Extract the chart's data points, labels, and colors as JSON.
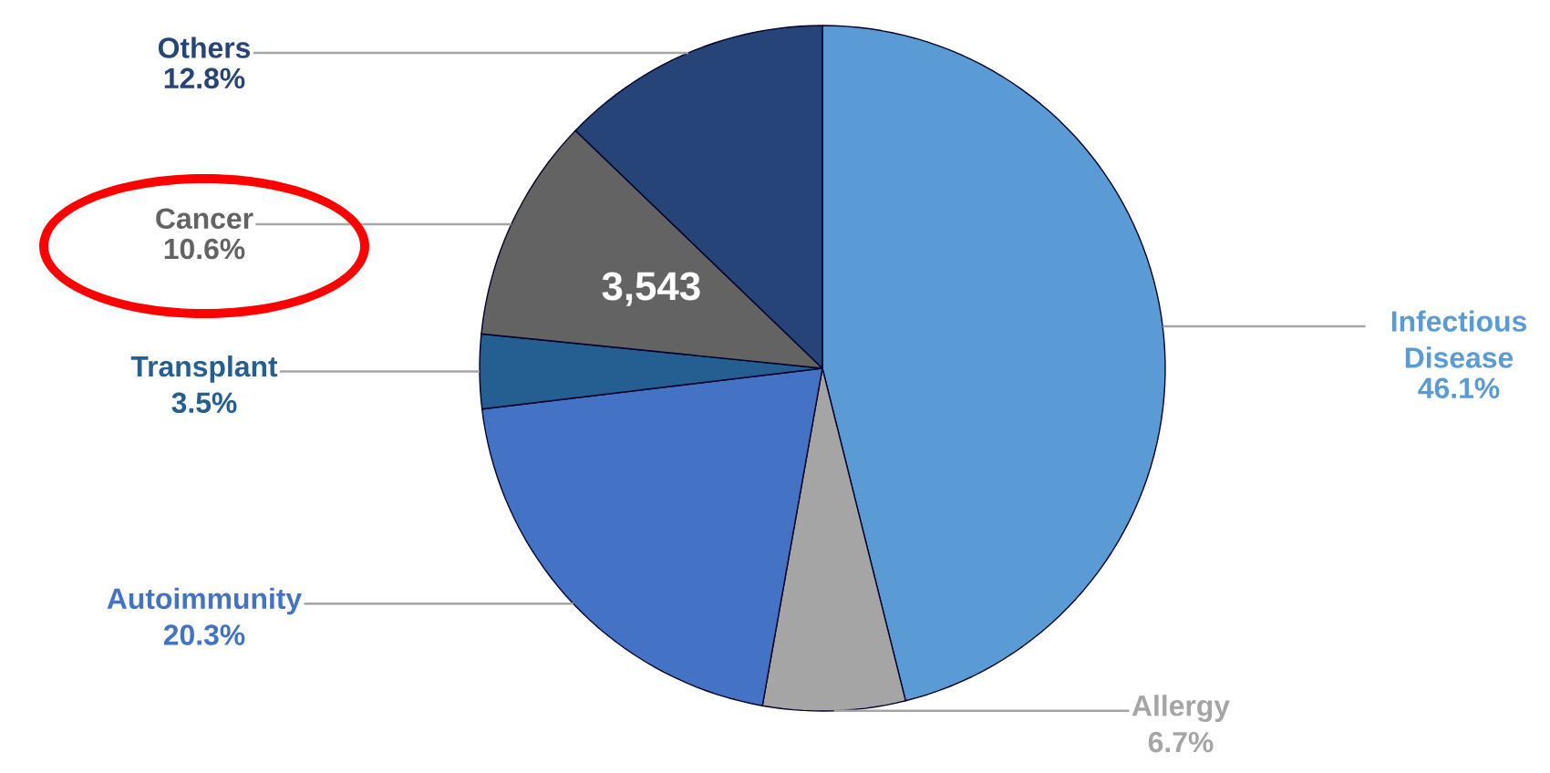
{
  "chart_data": {
    "type": "pie",
    "categories": [
      "Infectious Disease",
      "Allergy",
      "Autoimmunity",
      "Transplant",
      "Cancer",
      "Others"
    ],
    "values": [
      46.1,
      6.7,
      20.3,
      3.5,
      10.6,
      12.8
    ],
    "colors": [
      "#5b9bd5",
      "#a5a5a5",
      "#4472c4",
      "#255e91",
      "#636363",
      "#264478"
    ],
    "value_labels": [
      "46.1%",
      "6.7%",
      "20.3%",
      "3.5%",
      "10.6%",
      "12.8%"
    ],
    "annotations": [
      {
        "text": "3,543",
        "x": "Cancer"
      }
    ]
  }
}
